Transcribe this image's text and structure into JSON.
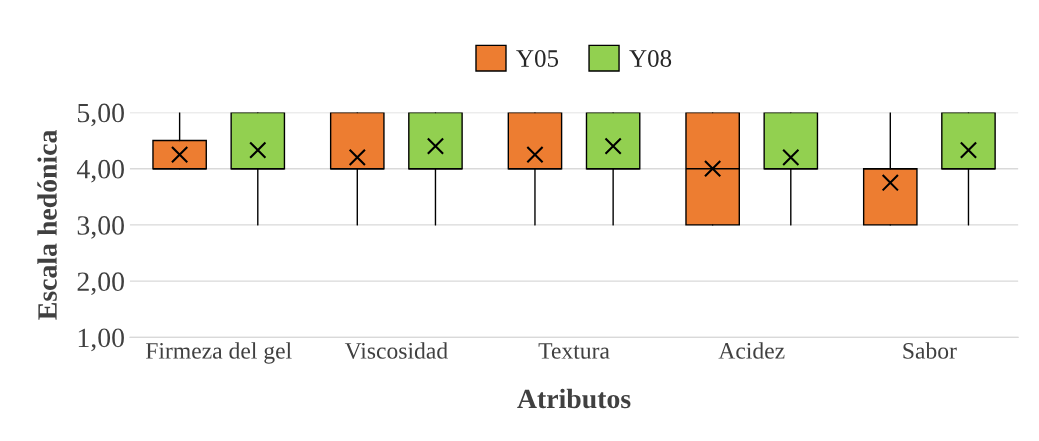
{
  "chart_data": {
    "type": "box",
    "xlabel": "Atributos",
    "ylabel": "Escala hedónica",
    "categories": [
      "Firmeza del gel",
      "Viscosidad",
      "Textura",
      "Acidez",
      "Sabor"
    ],
    "series": [
      {
        "name": "Y05",
        "color": "#ed7d31",
        "boxes": [
          {
            "low": 4,
            "q1": 4,
            "median": 4,
            "q3": 4.5,
            "high": 5,
            "mean": 4.25
          },
          {
            "low": 3,
            "q1": 4,
            "median": 4,
            "q3": 5,
            "high": 5,
            "mean": 4.2
          },
          {
            "low": 3,
            "q1": 4,
            "median": 4,
            "q3": 5,
            "high": 5,
            "mean": 4.25
          },
          {
            "low": 3,
            "q1": 3,
            "median": 4,
            "q3": 5,
            "high": 5,
            "mean": 4.0
          },
          {
            "low": 3,
            "q1": 3,
            "median": 4,
            "q3": 4,
            "high": 5,
            "mean": 3.75
          }
        ]
      },
      {
        "name": "Y08",
        "color": "#92d050",
        "boxes": [
          {
            "low": 3,
            "q1": 4,
            "median": 4,
            "q3": 5,
            "high": 5,
            "mean": 4.33
          },
          {
            "low": 3,
            "q1": 4,
            "median": 4,
            "q3": 5,
            "high": 5,
            "mean": 4.4
          },
          {
            "low": 3,
            "q1": 4,
            "median": 4,
            "q3": 5,
            "high": 5,
            "mean": 4.4
          },
          {
            "low": 3,
            "q1": 4,
            "median": 4,
            "q3": 5,
            "high": 5,
            "mean": 4.2
          },
          {
            "low": 3,
            "q1": 4,
            "median": 4,
            "q3": 5,
            "high": 5,
            "mean": 4.33
          }
        ]
      }
    ],
    "ylim": [
      1,
      5
    ],
    "yticks": [
      {
        "value": 1,
        "label": "1,00"
      },
      {
        "value": 2,
        "label": "2,00"
      },
      {
        "value": 3,
        "label": "3,00"
      },
      {
        "value": 4,
        "label": "4,00"
      },
      {
        "value": 5,
        "label": "5,00"
      }
    ],
    "grid": "y",
    "legend": "top",
    "marker": "cross"
  }
}
